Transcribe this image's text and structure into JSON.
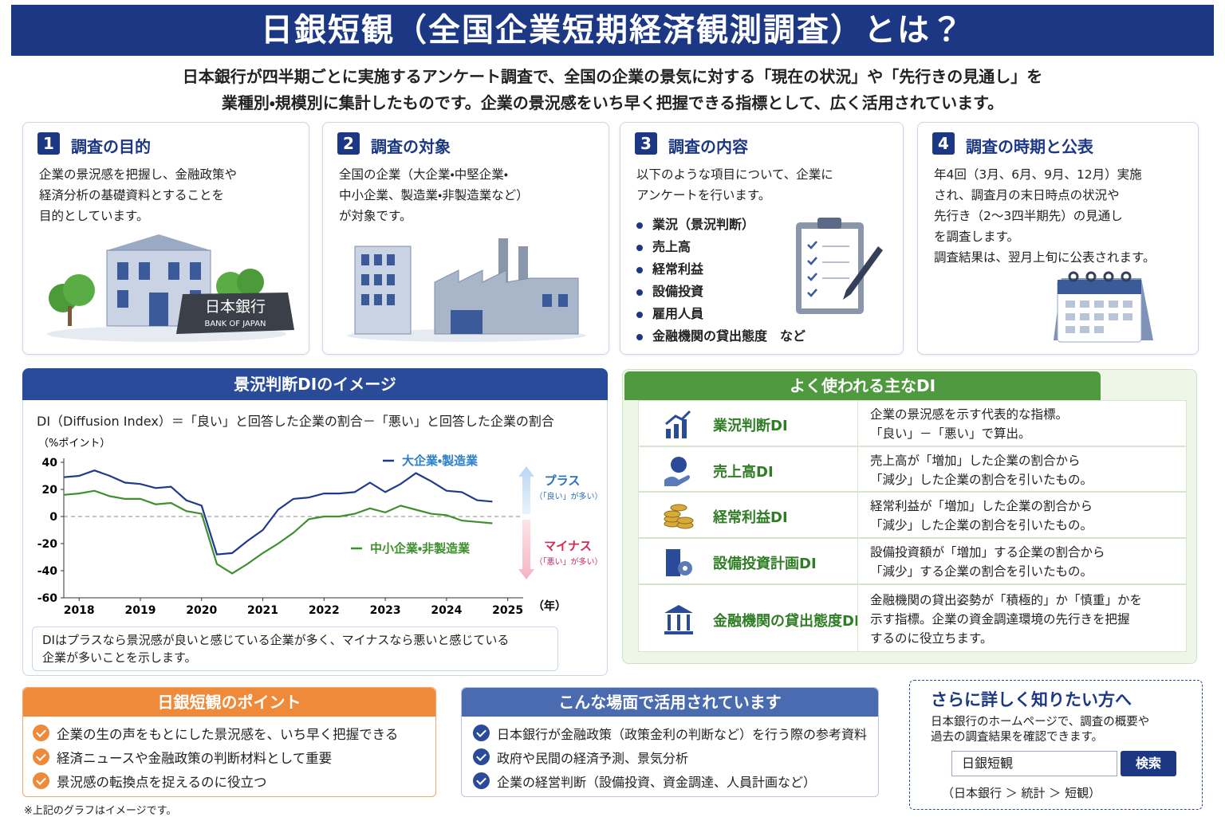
{
  "header": {
    "title": "日銀短観（全国企業短期経済観測調査）とは？",
    "lead": [
      "日本銀行が四半期ごとに実施するアンケート調査で、全国の企業の景気に対する「現在の状況」や「先行きの見通し」を",
      "業種別・規模別に集計したものです。企業の景況感をいち早く把握できる指標として、広く活用されています。"
    ]
  },
  "cards": [
    {
      "number": "1",
      "title": "調査の目的",
      "body": [
        "企業の景況感を把握し、金融政策や",
        "経済分析の基礎資料とすることを",
        "目的としています。"
      ],
      "sign_jp": "日本銀行",
      "sign_en": "BANK OF JAPAN"
    },
    {
      "number": "2",
      "title": "調査の対象",
      "body": [
        "全国の企業（大企業・中堅企業・",
        "中小企業、製造業・非製造業など）",
        "が対象です。"
      ]
    },
    {
      "number": "3",
      "title": "調査の内容",
      "body": [
        "以下のような項目について、企業に",
        "アンケートを行います。"
      ],
      "items": [
        "業況（景況判断）",
        "売上高",
        "経常利益",
        "設備投資",
        "雇用人員",
        "金融機関の貸出態度　など"
      ]
    },
    {
      "number": "4",
      "title": "調査の時期と公表",
      "body": [
        "年4回（3月、6月、9月、12月）実施",
        "され、調査月の末日時点の状況や",
        "先行き（2〜3四半期先）の見通し",
        "を調査します。",
        "調査結果は、翌月上旬に公表されます。"
      ]
    }
  ],
  "chart_section": {
    "title": "景況判断DIのイメージ",
    "formula": "DI（Diffusion Index）＝「良い」と回答した企業の割合－「悪い」と回答した企業の割合",
    "plus": "プラス",
    "plus_note": "（「良い」が多い）",
    "minus": "マイナス",
    "minus_note": "（「悪い」が多い）",
    "note": [
      "DIはプラスなら景況感が良いと感じている企業が多く、マイナスなら悪いと感じている",
      "企業が多いことを示します。"
    ]
  },
  "chart_data": {
    "type": "line",
    "y_unit": "（%ポイント）",
    "x_unit": "（年）",
    "x": [
      2017.75,
      2018,
      2018.25,
      2018.5,
      2018.75,
      2019,
      2019.25,
      2019.5,
      2019.75,
      2020,
      2020.25,
      2020.5,
      2020.75,
      2021,
      2021.25,
      2021.5,
      2021.75,
      2022,
      2022.25,
      2022.5,
      2022.75,
      2023,
      2023.25,
      2023.5,
      2023.75,
      2024,
      2024.25,
      2024.5,
      2024.75
    ],
    "series": [
      {
        "name": "大企業・製造業",
        "color": "#1f3a8a",
        "values": [
          29,
          30,
          34,
          30,
          25,
          24,
          21,
          22,
          12,
          8,
          -28,
          -27,
          -18,
          -10,
          5,
          13,
          14,
          17,
          17,
          18,
          25,
          18,
          24,
          32,
          26,
          19,
          18,
          12,
          11
        ]
      },
      {
        "name": "中小企業・非製造業",
        "color": "#3f8f2f",
        "values": [
          16,
          17,
          19,
          15,
          13,
          13,
          9,
          10,
          4,
          2,
          -35,
          -42,
          -35,
          -27,
          -20,
          -12,
          -2,
          0,
          0,
          2,
          6,
          3,
          8,
          5,
          2,
          1,
          -3,
          -4,
          -5
        ]
      }
    ],
    "xlim": [
      2017.75,
      2025.2
    ],
    "ylim": [
      -60,
      40
    ],
    "xticks": [
      2018,
      2019,
      2020,
      2021,
      2022,
      2023,
      2024,
      2025
    ],
    "yticks": [
      -60,
      -40,
      -20,
      0,
      20,
      40
    ]
  },
  "di_table": {
    "title": "よく使われる主なDI",
    "rows": [
      {
        "name": "業況判断DI",
        "desc": [
          "企業の景況感を示す代表的な指標。",
          "「良い」－「悪い」で算出。"
        ]
      },
      {
        "name": "売上高DI",
        "desc": [
          "売上高が「増加」した企業の割合から",
          "「減少」した企業の割合を引いたもの。"
        ]
      },
      {
        "name": "経常利益DI",
        "desc": [
          "経常利益が「増加」した企業の割合から",
          "「減少」した企業の割合を引いたもの。"
        ]
      },
      {
        "name": "設備投資計画DI",
        "desc": [
          "設備投資額が「増加」する企業の割合から",
          "「減少」する企業の割合を引いたもの。"
        ]
      },
      {
        "name": "金融機関の貸出態度DI",
        "desc": [
          "金融機関の貸出姿勢が「積極的」か「慎重」かを",
          "示す指標。企業の資金調達環境の先行きを把握",
          "するのに役立ちます。"
        ]
      }
    ]
  },
  "points": {
    "title": "日銀短観のポイント",
    "items": [
      "企業の生の声をもとにした景況感を、いち早く把握できる",
      "経済ニュースや金融政策の判断材料として重要",
      "景況感の転換点を捉えるのに役立つ"
    ]
  },
  "uses": {
    "title": "こんな場面で活用されています",
    "items": [
      "日本銀行が金融政策（政策金利の判断など）を行う際の参考資料",
      "政府や民間の経済予測、景気分析",
      "企業の経営判断（設備投資、資金調達、人員計画など）"
    ]
  },
  "more": {
    "title": "さらに詳しく知りたい方へ",
    "body": [
      "日本銀行のホームページで、調査の概要や",
      "過去の調査結果を確認できます。"
    ],
    "search_text": "日銀短観",
    "button": "検索",
    "path": "（日本銀行 ＞ 統計 ＞ 短観）"
  },
  "footnote": "※上記のグラフはイメージです。"
}
